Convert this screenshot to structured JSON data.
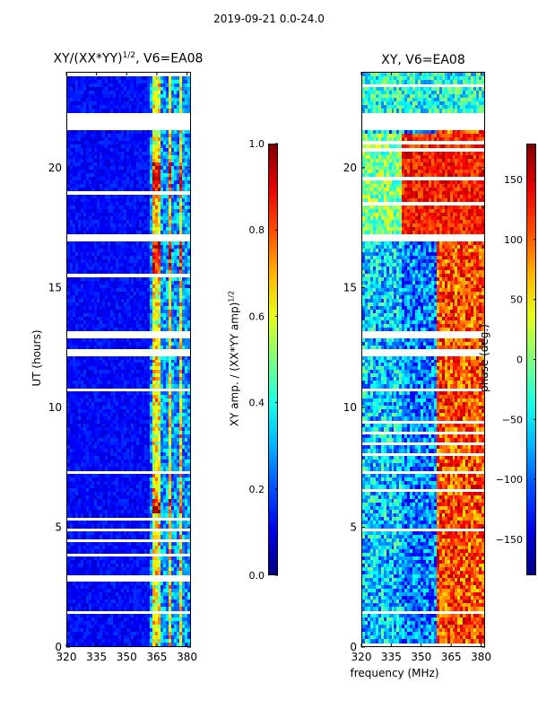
{
  "chart_data": [
    {
      "type": "heatmap",
      "suptitle": "2019-09-21 0.0-24.0",
      "title_prefix": "XY/(XX*YY)",
      "title_exp": "1/2",
      "title_suffix": ", V6=EA08",
      "xlabel": "",
      "ylabel": "UT (hours)",
      "xlim": [
        320,
        382
      ],
      "ylim": [
        0,
        24
      ],
      "xticks": [
        "320",
        "335",
        "350",
        "365",
        "380"
      ],
      "xtick_values": [
        320,
        335,
        350,
        365,
        380
      ],
      "yticks": [
        "0",
        "5",
        "10",
        "15",
        "20"
      ],
      "ytick_values": [
        0,
        5,
        10,
        15,
        20
      ],
      "colorbar": {
        "label_prefix": "XY amp. / (XX*YY amp)",
        "label_exp": "1/2",
        "range": [
          0.0,
          1.0
        ],
        "ticks": [
          "0.0",
          "0.2",
          "0.4",
          "0.6",
          "0.8",
          "1.0"
        ],
        "tick_values": [
          0.0,
          0.2,
          0.4,
          0.6,
          0.8,
          1.0
        ],
        "colormap": "jet"
      },
      "blank_bands_hours": [
        [
          21.6,
          22.3
        ],
        [
          16.9,
          17.3
        ],
        [
          12.9,
          13.2
        ],
        [
          12.2,
          12.4
        ],
        [
          10.6,
          10.8
        ],
        [
          7.2,
          7.4
        ],
        [
          4.8,
          4.95
        ],
        [
          1.9,
          2.0
        ],
        [
          1.4,
          1.5
        ]
      ],
      "bright_rows_hours": [
        [
          15.5,
          17.0
        ],
        [
          5.5,
          6.1
        ],
        [
          18.7,
          20.3
        ]
      ],
      "bright_columns_MHz": [
        [
          363,
          367
        ],
        [
          371,
          373
        ],
        [
          376,
          378
        ]
      ]
    },
    {
      "type": "heatmap",
      "title": "XY, V6=EA08",
      "xlabel": "frequency (MHz)",
      "ylabel": "",
      "xlim": [
        320,
        382
      ],
      "ylim": [
        0,
        24
      ],
      "xticks": [
        "320",
        "335",
        "350",
        "365",
        "380"
      ],
      "xtick_values": [
        320,
        335,
        350,
        365,
        380
      ],
      "yticks": [
        "0",
        "5",
        "10",
        "15",
        "20"
      ],
      "ytick_values": [
        0,
        5,
        10,
        15,
        20
      ],
      "colorbar": {
        "label": "phase (deg.)",
        "range": [
          -180,
          180
        ],
        "ticks": [
          "−150",
          "−100",
          "−50",
          "0",
          "50",
          "100",
          "150"
        ],
        "tick_values": [
          -150,
          -100,
          -50,
          0,
          50,
          100,
          150
        ],
        "colormap": "jet"
      },
      "blank_bands_hours": [
        [
          21.6,
          22.3
        ],
        [
          16.9,
          17.3
        ],
        [
          12.9,
          13.2
        ],
        [
          12.2,
          12.4
        ],
        [
          10.6,
          10.8
        ],
        [
          7.2,
          7.4
        ],
        [
          4.8,
          4.95
        ],
        [
          1.9,
          2.0
        ],
        [
          1.4,
          1.5
        ]
      ]
    }
  ]
}
